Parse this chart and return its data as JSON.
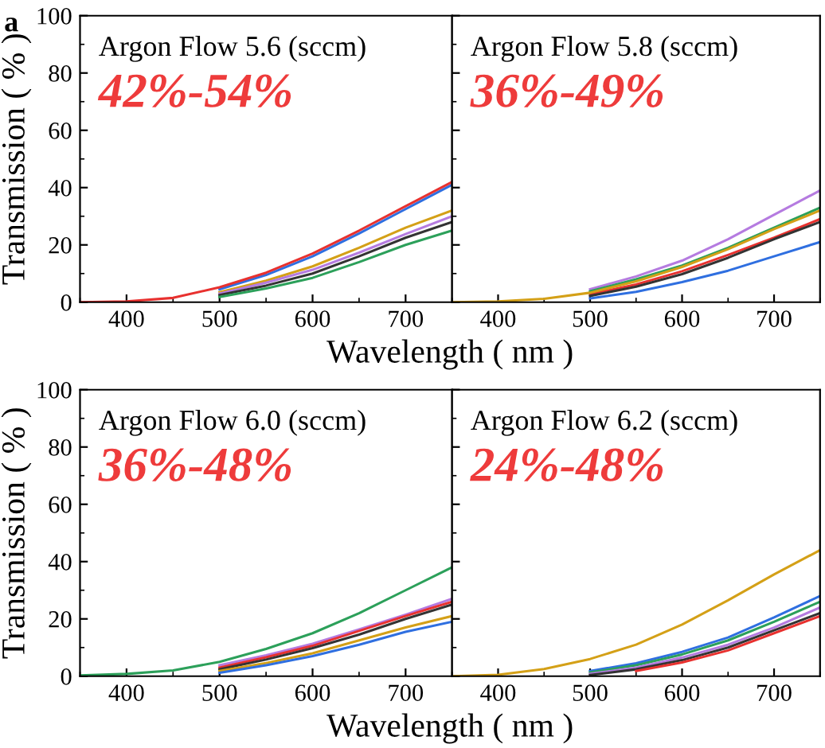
{
  "chart_data": [
    {
      "type": "line",
      "title": "Argon Flow 5.6 (sccm)",
      "annotations": [
        "a",
        "42%-54%"
      ],
      "xlabel": "Wavelength ( nm )",
      "ylabel": "Transmission ( % )",
      "x": [
        350,
        400,
        450,
        500,
        550,
        600,
        650,
        700,
        750
      ],
      "xlim": [
        350,
        750
      ],
      "xticks": [
        400,
        500,
        600,
        700
      ],
      "ylim": [
        0,
        100
      ],
      "yticks": [
        0,
        20,
        40,
        60,
        80,
        100
      ],
      "series": [
        {
          "color": "#2f6fe0",
          "values": [
            null,
            null,
            null,
            4.5,
            9.5,
            16,
            24,
            32.5,
            41
          ]
        },
        {
          "color": "#d4a017",
          "values": [
            null,
            null,
            null,
            3.5,
            7.5,
            12.5,
            19,
            26,
            32
          ]
        },
        {
          "color": "#b57be0",
          "values": [
            null,
            null,
            null,
            3,
            6.8,
            11.3,
            17.3,
            23.8,
            30
          ]
        },
        {
          "color": "#333333",
          "values": [
            null,
            null,
            null,
            2.5,
            5.8,
            10,
            16,
            22.5,
            28
          ]
        },
        {
          "color": "#2ca05a",
          "values": [
            null,
            null,
            null,
            1.8,
            4.8,
            8.5,
            14,
            20,
            25
          ]
        },
        {
          "color": "#e8312f",
          "values": [
            0,
            0.3,
            1.5,
            5.2,
            10.3,
            17,
            25,
            33.5,
            42
          ]
        }
      ]
    },
    {
      "type": "line",
      "title": "Argon Flow 5.8 (sccm)",
      "annotations": [
        "36%-49%"
      ],
      "tick_labels": "x",
      "x": [
        350,
        400,
        450,
        500,
        550,
        600,
        650,
        700,
        750
      ],
      "xlim": [
        350,
        750
      ],
      "xticks": [
        400,
        500,
        600,
        700
      ],
      "ylim": [
        0,
        100
      ],
      "yticks": [
        0,
        20,
        40,
        60,
        80,
        100
      ],
      "series": [
        {
          "color": "#b57be0",
          "values": [
            null,
            null,
            null,
            4.5,
            9,
            14.5,
            22,
            30.5,
            39
          ]
        },
        {
          "color": "#2ca05a",
          "values": [
            null,
            null,
            null,
            3.8,
            8,
            12.8,
            19,
            26,
            33
          ]
        },
        {
          "color": "#e8312f",
          "values": [
            null,
            null,
            null,
            2.8,
            6.2,
            10.8,
            16.5,
            22.5,
            29
          ]
        },
        {
          "color": "#333333",
          "values": [
            null,
            null,
            null,
            2.2,
            5.4,
            9.8,
            15.5,
            22,
            28
          ]
        },
        {
          "color": "#2f6fe0",
          "values": [
            null,
            null,
            null,
            1.3,
            3.6,
            7,
            11,
            16,
            21
          ]
        },
        {
          "color": "#d4a017",
          "values": [
            0,
            0.3,
            1.2,
            3.3,
            7.3,
            12.3,
            18.5,
            25.5,
            32
          ]
        }
      ]
    },
    {
      "type": "line",
      "title": "Argon Flow 6.0 (sccm)",
      "annotations": [
        "36%-48%"
      ],
      "xlabel": "Wavelength ( nm )",
      "ylabel": "Transmission ( % )",
      "x": [
        350,
        400,
        450,
        500,
        550,
        600,
        650,
        700,
        750
      ],
      "xlim": [
        350,
        750
      ],
      "xticks": [
        400,
        500,
        600,
        700
      ],
      "ylim": [
        0,
        100
      ],
      "yticks": [
        0,
        20,
        40,
        60,
        80,
        100
      ],
      "series": [
        {
          "color": "#b57be0",
          "values": [
            null,
            null,
            null,
            3.8,
            7.3,
            11.3,
            16.3,
            21.5,
            27
          ]
        },
        {
          "color": "#e8312f",
          "values": [
            null,
            null,
            null,
            3,
            6.6,
            10.6,
            15.8,
            21,
            26
          ]
        },
        {
          "color": "#333333",
          "values": [
            null,
            null,
            null,
            2.4,
            5.8,
            9.8,
            14.5,
            20,
            25
          ]
        },
        {
          "color": "#d4a017",
          "values": [
            null,
            null,
            null,
            1.8,
            4.6,
            8,
            12.5,
            17,
            21
          ]
        },
        {
          "color": "#2f6fe0",
          "values": [
            null,
            null,
            null,
            1.2,
            3.8,
            7,
            11,
            15.5,
            19
          ]
        },
        {
          "color": "#2ca05a",
          "values": [
            0.3,
            0.8,
            2,
            5,
            9.5,
            15,
            22,
            30,
            38
          ]
        }
      ]
    },
    {
      "type": "line",
      "title": "Argon Flow 6.2 (sccm)",
      "annotations": [
        "24%-48%"
      ],
      "tick_labels": "x",
      "x": [
        350,
        400,
        450,
        500,
        550,
        600,
        650,
        700,
        750
      ],
      "xlim": [
        350,
        750
      ],
      "xticks": [
        400,
        500,
        600,
        700
      ],
      "ylim": [
        0,
        100
      ],
      "yticks": [
        0,
        20,
        40,
        60,
        80,
        100
      ],
      "series": [
        {
          "color": "#2f6fe0",
          "values": [
            null,
            null,
            null,
            1.8,
            4.5,
            8.5,
            13.5,
            20.5,
            28
          ]
        },
        {
          "color": "#2ca05a",
          "values": [
            null,
            null,
            null,
            1.3,
            3.8,
            7.6,
            12.5,
            19,
            26
          ]
        },
        {
          "color": "#b57be0",
          "values": [
            null,
            null,
            null,
            0.8,
            3,
            6.5,
            11,
            17,
            24
          ]
        },
        {
          "color": "#333333",
          "values": [
            null,
            null,
            null,
            0.4,
            2.4,
            5.6,
            10,
            16,
            22
          ]
        },
        {
          "color": "#e8312f",
          "values": [
            null,
            null,
            null,
            null,
            1.8,
            4.8,
            9,
            15,
            21
          ]
        },
        {
          "color": "#d4a017",
          "values": [
            0,
            0.5,
            2.5,
            6,
            11,
            18,
            26.5,
            35.5,
            44
          ]
        }
      ]
    }
  ]
}
